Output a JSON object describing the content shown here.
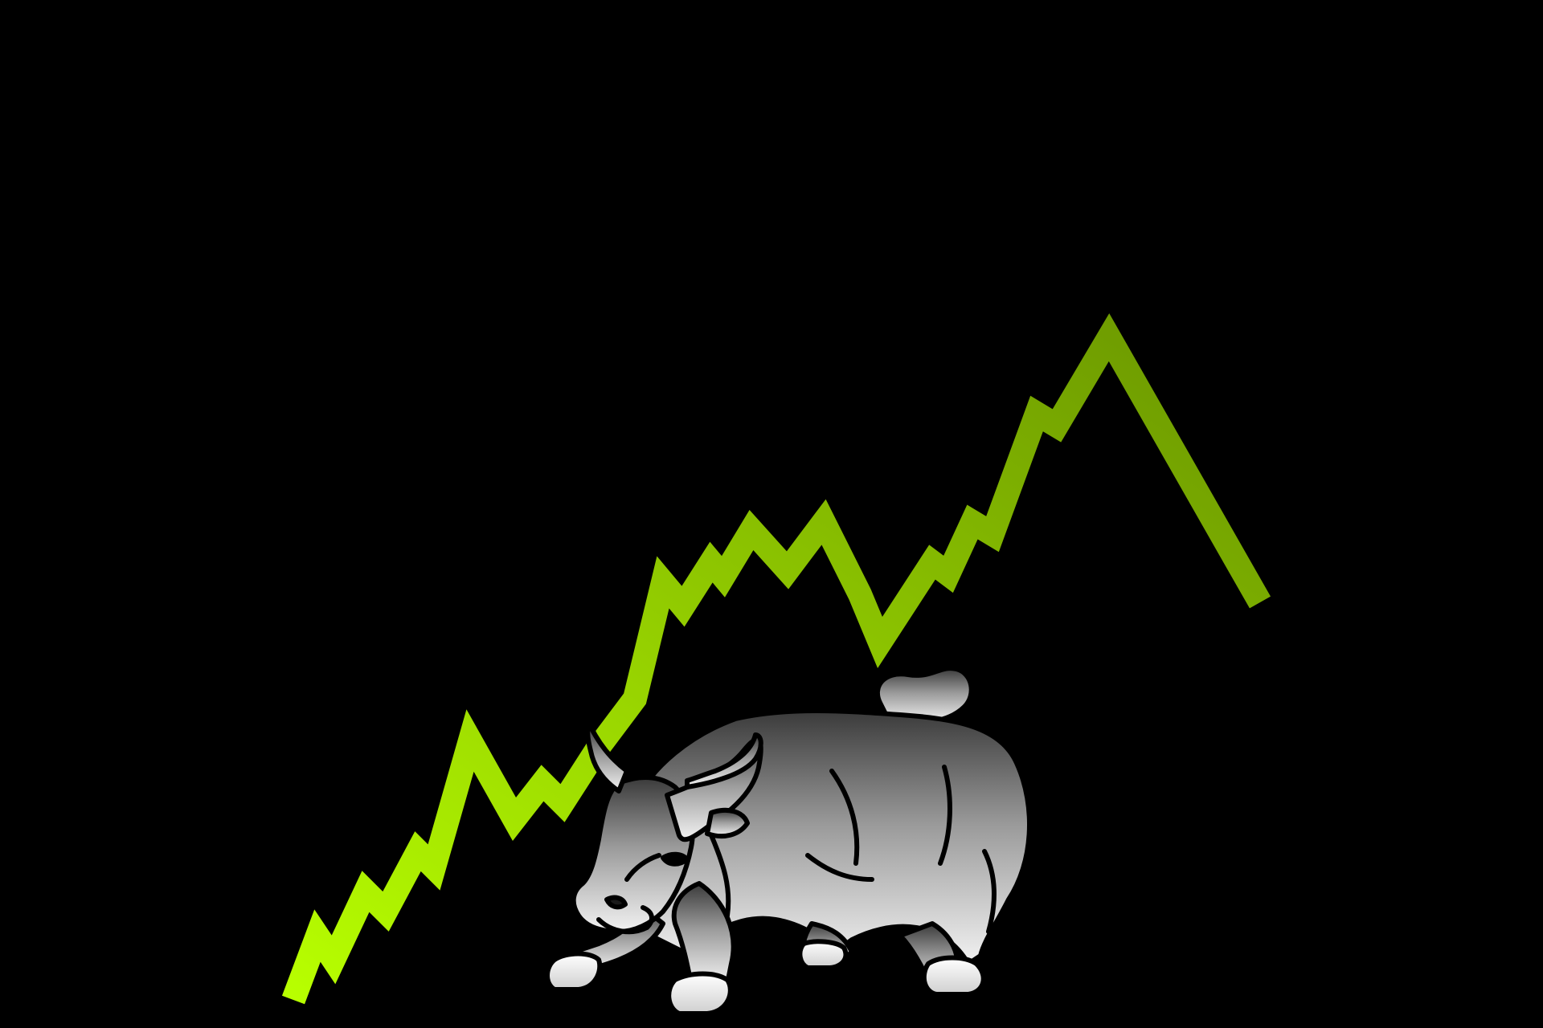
{
  "scene": {
    "background_color": "#000000",
    "subject": "bull-icon",
    "trend_line": {
      "color_start": "#b8ff00",
      "color_end": "#6a9600"
    },
    "bull": {
      "body_light": "#f2f2f2",
      "body_dark": "#3a3a3a",
      "outline": "#000000",
      "hoof_color": "#e6e6e6"
    }
  }
}
